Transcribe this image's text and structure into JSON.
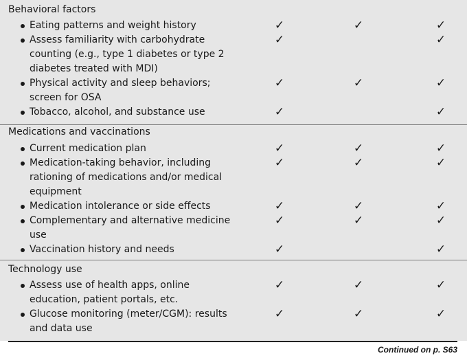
{
  "sections": [
    {
      "title": "Behavioral factors",
      "items": [
        {
          "lines": [
            "Eating patterns and weight history"
          ],
          "checks": [
            true,
            true,
            true
          ]
        },
        {
          "lines": [
            "Assess familiarity with carbohydrate",
            "counting (e.g., type 1 diabetes or type 2",
            "diabetes treated with MDI)"
          ],
          "checks": [
            true,
            false,
            true
          ]
        },
        {
          "lines": [
            "Physical activity and sleep behaviors;",
            "screen for OSA"
          ],
          "checks": [
            true,
            true,
            true
          ]
        },
        {
          "lines": [
            "Tobacco, alcohol, and substance use"
          ],
          "checks": [
            true,
            false,
            true
          ]
        }
      ]
    },
    {
      "title": "Medications and vaccinations",
      "items": [
        {
          "lines": [
            "Current medication plan"
          ],
          "checks": [
            true,
            true,
            true
          ]
        },
        {
          "lines": [
            "Medication-taking behavior, including",
            "rationing of medications and/or medical",
            "equipment"
          ],
          "checks": [
            true,
            true,
            true
          ]
        },
        {
          "lines": [
            "Medication intolerance or side effects"
          ],
          "checks": [
            true,
            true,
            true
          ]
        },
        {
          "lines": [
            "Complementary and alternative medicine",
            "use"
          ],
          "checks": [
            true,
            true,
            true
          ]
        },
        {
          "lines": [
            "Vaccination history and needs"
          ],
          "checks": [
            true,
            false,
            true
          ]
        }
      ]
    },
    {
      "title": "Technology use",
      "items": [
        {
          "lines": [
            "Assess use of health apps, online",
            "education, patient portals, etc."
          ],
          "checks": [
            true,
            true,
            true
          ]
        },
        {
          "lines": [
            "Glucose monitoring (meter/CGM): results",
            "and data use"
          ],
          "checks": [
            true,
            true,
            true
          ]
        }
      ]
    }
  ],
  "check_glyph": "✓",
  "footer": "Continued on p. S63"
}
